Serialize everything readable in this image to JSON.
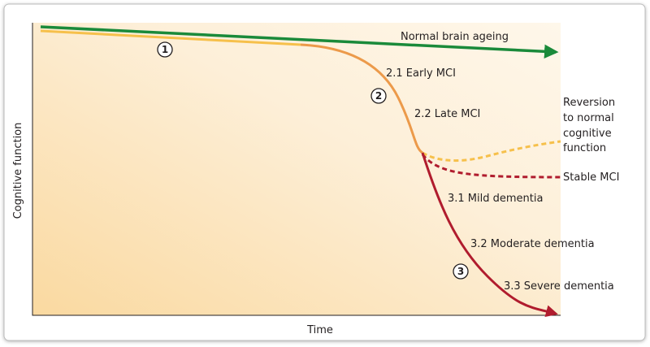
{
  "diagram": {
    "y_axis_label": "Cognitive function",
    "x_axis_label": "Time",
    "curves": {
      "normal": "Normal brain ageing",
      "early_mci": "2.1 Early MCI",
      "late_mci": "2.2 Late MCI",
      "reversion": [
        "Reversion",
        "to normal",
        "cognitive",
        "function"
      ],
      "stable_mci": "Stable MCI",
      "mild": "3.1 Mild dementia",
      "moderate": "3.2 Moderate dementia",
      "severe": "3.3 Severe dementia"
    },
    "stages": [
      "1",
      "2",
      "3"
    ]
  }
}
